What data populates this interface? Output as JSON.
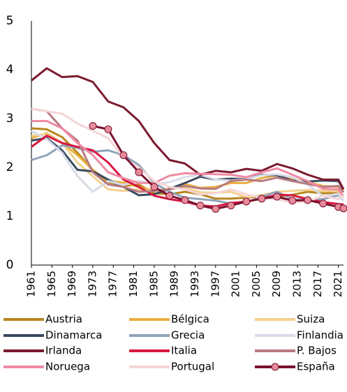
{
  "chart_data": {
    "type": "line",
    "x": [
      1961,
      1964,
      1967,
      1970,
      1973,
      1976,
      1979,
      1982,
      1985,
      1988,
      1991,
      1994,
      1997,
      2000,
      2003,
      2006,
      2009,
      2012,
      2015,
      2018,
      2021,
      2022
    ],
    "xlim": [
      1961,
      2022
    ],
    "xticks": [
      1961,
      1965,
      1969,
      1973,
      1977,
      1981,
      1985,
      1989,
      1993,
      1997,
      2001,
      2005,
      2009,
      2013,
      2017,
      2021
    ],
    "ylim": [
      0,
      5
    ],
    "yticks": [
      0,
      1,
      2,
      3,
      4,
      5
    ],
    "grid": false,
    "series": [
      {
        "name": "Austria",
        "color": "#b8861e",
        "values": [
          2.8,
          2.78,
          2.62,
          2.3,
          1.95,
          1.7,
          1.62,
          1.65,
          1.47,
          1.45,
          1.5,
          1.45,
          1.36,
          1.36,
          1.38,
          1.4,
          1.39,
          1.44,
          1.5,
          1.47,
          1.48,
          1.41
        ]
      },
      {
        "name": "Bélgica",
        "color": "#e8b040",
        "values": [
          2.6,
          2.7,
          2.5,
          2.25,
          1.95,
          1.72,
          1.69,
          1.6,
          1.52,
          1.56,
          1.66,
          1.58,
          1.6,
          1.68,
          1.68,
          1.78,
          1.84,
          1.78,
          1.7,
          1.62,
          1.6,
          1.53
        ]
      },
      {
        "name": "Suiza",
        "color": "#f3d08e",
        "values": [
          2.65,
          2.68,
          2.5,
          2.1,
          1.82,
          1.55,
          1.52,
          1.55,
          1.52,
          1.57,
          1.58,
          1.49,
          1.48,
          1.5,
          1.39,
          1.43,
          1.5,
          1.52,
          1.54,
          1.52,
          1.51,
          1.39
        ]
      },
      {
        "name": "Dinamarca",
        "color": "#3a4a5e",
        "values": [
          2.55,
          2.6,
          2.35,
          1.95,
          1.92,
          1.75,
          1.6,
          1.43,
          1.45,
          1.56,
          1.68,
          1.81,
          1.75,
          1.77,
          1.76,
          1.85,
          1.84,
          1.73,
          1.71,
          1.73,
          1.72,
          1.55
        ]
      },
      {
        "name": "Grecia",
        "color": "#8fa3b8",
        "values": [
          2.15,
          2.25,
          2.45,
          2.4,
          2.32,
          2.35,
          2.25,
          2.05,
          1.68,
          1.5,
          1.38,
          1.35,
          1.32,
          1.26,
          1.28,
          1.4,
          1.5,
          1.35,
          1.33,
          1.35,
          1.43,
          1.32
        ]
      },
      {
        "name": "Finlandia",
        "color": "#d8dce8",
        "values": [
          2.75,
          2.58,
          2.3,
          1.82,
          1.5,
          1.72,
          1.64,
          1.73,
          1.65,
          1.7,
          1.8,
          1.85,
          1.75,
          1.73,
          1.76,
          1.84,
          1.86,
          1.8,
          1.65,
          1.41,
          1.46,
          1.32
        ]
      },
      {
        "name": "Irlanda",
        "color": "#7b1a2e",
        "values": [
          3.78,
          4.03,
          3.85,
          3.87,
          3.75,
          3.35,
          3.23,
          2.95,
          2.5,
          2.15,
          2.08,
          1.85,
          1.93,
          1.9,
          1.97,
          1.93,
          2.07,
          1.98,
          1.85,
          1.75,
          1.75,
          1.55
        ]
      },
      {
        "name": "Italia",
        "color": "#d6173f",
        "values": [
          2.42,
          2.65,
          2.5,
          2.42,
          2.35,
          2.1,
          1.75,
          1.6,
          1.42,
          1.35,
          1.3,
          1.22,
          1.2,
          1.27,
          1.3,
          1.36,
          1.44,
          1.43,
          1.35,
          1.29,
          1.25,
          1.24
        ]
      },
      {
        "name": "P. Bajos",
        "color": "#b87a80",
        "values": [
          3.2,
          3.15,
          2.8,
          2.55,
          1.9,
          1.65,
          1.6,
          1.5,
          1.52,
          1.55,
          1.62,
          1.57,
          1.56,
          1.72,
          1.75,
          1.72,
          1.79,
          1.72,
          1.66,
          1.6,
          1.62,
          1.49
        ]
      },
      {
        "name": "Noruega",
        "color": "#f08aa3",
        "values": [
          2.95,
          2.95,
          2.8,
          2.5,
          2.25,
          1.9,
          1.78,
          1.68,
          1.68,
          1.83,
          1.88,
          1.87,
          1.86,
          1.85,
          1.8,
          1.9,
          1.98,
          1.85,
          1.72,
          1.56,
          1.55,
          1.41
        ]
      },
      {
        "name": "Portugal",
        "color": "#f5d5d8",
        "values": [
          3.2,
          3.15,
          3.1,
          2.9,
          2.75,
          2.6,
          2.2,
          2.0,
          1.72,
          1.6,
          1.55,
          1.45,
          1.47,
          1.55,
          1.45,
          1.38,
          1.35,
          1.28,
          1.3,
          1.42,
          1.35,
          1.43
        ]
      },
      {
        "name": "España",
        "color": "#7a1230",
        "marker": "circle",
        "marker_color": "#e88a9a",
        "values": [
          null,
          null,
          null,
          null,
          2.85,
          2.78,
          2.25,
          1.9,
          1.6,
          1.42,
          1.33,
          1.22,
          1.15,
          1.22,
          1.3,
          1.36,
          1.4,
          1.32,
          1.33,
          1.26,
          1.19,
          1.16
        ]
      }
    ]
  }
}
